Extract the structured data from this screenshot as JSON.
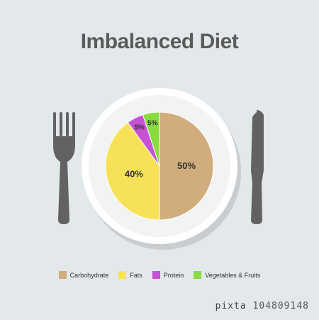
{
  "title": "Imbalanced Diet",
  "chart_data": {
    "type": "pie",
    "title": "Imbalanced Diet",
    "slices": [
      {
        "label": "Carbohydrate",
        "value": 50,
        "display": "50%",
        "color": "#d1ac7d"
      },
      {
        "label": "Fats",
        "value": 40,
        "display": "40%",
        "color": "#f7e257"
      },
      {
        "label": "Protein",
        "value": 5,
        "display": "5%",
        "color": "#c651d4"
      },
      {
        "label": "Vegetables & Fruits",
        "value": 5,
        "display": "5%",
        "color": "#88dc3d"
      }
    ],
    "legend_position": "bottom"
  },
  "legend": [
    {
      "label": "Carbohydrate",
      "color": "#d1ac7d"
    },
    {
      "label": "Fats",
      "color": "#f7e257"
    },
    {
      "label": "Protein",
      "color": "#c651d4"
    },
    {
      "label": "Vegetables & Fruits",
      "color": "#88dc3d"
    }
  ],
  "icons": [
    "fork-icon",
    "knife-icon",
    "plate-icon"
  ],
  "colors": {
    "background": "#e3e8ea",
    "cutlery": "#626262",
    "plate": "#ffffff",
    "plate_shadow": "#c9cdcf"
  },
  "watermark": {
    "brand": "pixta",
    "id": "104809148"
  }
}
